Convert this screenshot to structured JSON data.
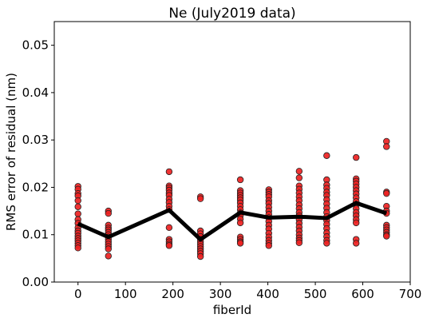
{
  "chart_data": {
    "type": "scatter",
    "title": "Ne (July2019 data)",
    "xlabel": "fiberId",
    "ylabel": "RMS error of residual (nm)",
    "xlim": [
      -50,
      700
    ],
    "ylim": [
      0.0,
      0.055
    ],
    "xticks": [
      0,
      100,
      200,
      300,
      400,
      500,
      600,
      700
    ],
    "xtick_labels": [
      "0",
      "100",
      "200",
      "300",
      "400",
      "500",
      "600",
      "700"
    ],
    "yticks": [
      0.0,
      0.01,
      0.02,
      0.03,
      0.04,
      0.05
    ],
    "ytick_labels": [
      "0.00",
      "0.01",
      "0.02",
      "0.03",
      "0.04",
      "0.05"
    ],
    "grid": false,
    "colors": {
      "points": "#ee2222",
      "point_edge": "#222222",
      "line": "#000000"
    },
    "series": [
      {
        "kind": "points",
        "points": [
          [
            0,
            0.0202
          ],
          [
            0,
            0.0196
          ],
          [
            0,
            0.0187
          ],
          [
            0,
            0.0182
          ],
          [
            0,
            0.0172
          ],
          [
            0,
            0.0159
          ],
          [
            0,
            0.0144
          ],
          [
            0,
            0.0132
          ],
          [
            0,
            0.0124
          ],
          [
            0,
            0.0115
          ],
          [
            0,
            0.0108
          ],
          [
            0,
            0.0103
          ],
          [
            0,
            0.0097
          ],
          [
            0,
            0.0092
          ],
          [
            0,
            0.0087
          ],
          [
            0,
            0.0082
          ],
          [
            0,
            0.0077
          ],
          [
            0,
            0.0072
          ],
          [
            64,
            0.015
          ],
          [
            64,
            0.0145
          ],
          [
            64,
            0.012
          ],
          [
            64,
            0.0114
          ],
          [
            64,
            0.011
          ],
          [
            64,
            0.0105
          ],
          [
            64,
            0.01
          ],
          [
            64,
            0.0095
          ],
          [
            64,
            0.009
          ],
          [
            64,
            0.0085
          ],
          [
            64,
            0.008
          ],
          [
            64,
            0.0075
          ],
          [
            64,
            0.007
          ],
          [
            64,
            0.0055
          ],
          [
            192,
            0.0233
          ],
          [
            192,
            0.0203
          ],
          [
            192,
            0.0199
          ],
          [
            192,
            0.0194
          ],
          [
            192,
            0.0188
          ],
          [
            192,
            0.0183
          ],
          [
            192,
            0.0175
          ],
          [
            192,
            0.0168
          ],
          [
            192,
            0.016
          ],
          [
            192,
            0.0153
          ],
          [
            192,
            0.0115
          ],
          [
            192,
            0.009
          ],
          [
            192,
            0.0085
          ],
          [
            192,
            0.008
          ],
          [
            192,
            0.0077
          ],
          [
            258,
            0.018
          ],
          [
            258,
            0.0176
          ],
          [
            258,
            0.0108
          ],
          [
            258,
            0.0102
          ],
          [
            258,
            0.0096
          ],
          [
            258,
            0.009
          ],
          [
            258,
            0.0085
          ],
          [
            258,
            0.008
          ],
          [
            258,
            0.0075
          ],
          [
            258,
            0.007
          ],
          [
            258,
            0.0065
          ],
          [
            258,
            0.006
          ],
          [
            258,
            0.0054
          ],
          [
            342,
            0.0216
          ],
          [
            342,
            0.0193
          ],
          [
            342,
            0.0188
          ],
          [
            342,
            0.0183
          ],
          [
            342,
            0.0178
          ],
          [
            342,
            0.0173
          ],
          [
            342,
            0.0167
          ],
          [
            342,
            0.016
          ],
          [
            342,
            0.0153
          ],
          [
            342,
            0.0146
          ],
          [
            342,
            0.014
          ],
          [
            342,
            0.0133
          ],
          [
            342,
            0.0125
          ],
          [
            342,
            0.0095
          ],
          [
            342,
            0.009
          ],
          [
            342,
            0.0085
          ],
          [
            342,
            0.0082
          ],
          [
            402,
            0.0195
          ],
          [
            402,
            0.019
          ],
          [
            402,
            0.0185
          ],
          [
            402,
            0.018
          ],
          [
            402,
            0.0172
          ],
          [
            402,
            0.0166
          ],
          [
            402,
            0.0158
          ],
          [
            402,
            0.015
          ],
          [
            402,
            0.0143
          ],
          [
            402,
            0.0136
          ],
          [
            402,
            0.0128
          ],
          [
            402,
            0.012
          ],
          [
            402,
            0.0112
          ],
          [
            402,
            0.0103
          ],
          [
            402,
            0.0095
          ],
          [
            402,
            0.0088
          ],
          [
            402,
            0.0082
          ],
          [
            402,
            0.0077
          ],
          [
            466,
            0.0234
          ],
          [
            466,
            0.022
          ],
          [
            466,
            0.0203
          ],
          [
            466,
            0.0196
          ],
          [
            466,
            0.0188
          ],
          [
            466,
            0.018
          ],
          [
            466,
            0.0172
          ],
          [
            466,
            0.0163
          ],
          [
            466,
            0.0155
          ],
          [
            466,
            0.0147
          ],
          [
            466,
            0.014
          ],
          [
            466,
            0.0132
          ],
          [
            466,
            0.0124
          ],
          [
            466,
            0.0116
          ],
          [
            466,
            0.0108
          ],
          [
            466,
            0.01
          ],
          [
            466,
            0.0093
          ],
          [
            466,
            0.0088
          ],
          [
            466,
            0.0083
          ],
          [
            524,
            0.0267
          ],
          [
            524,
            0.0216
          ],
          [
            524,
            0.0205
          ],
          [
            524,
            0.0198
          ],
          [
            524,
            0.019
          ],
          [
            524,
            0.0183
          ],
          [
            524,
            0.0174
          ],
          [
            524,
            0.0165
          ],
          [
            524,
            0.0156
          ],
          [
            524,
            0.0147
          ],
          [
            524,
            0.0138
          ],
          [
            524,
            0.013
          ],
          [
            524,
            0.0122
          ],
          [
            524,
            0.0113
          ],
          [
            524,
            0.0104
          ],
          [
            524,
            0.0096
          ],
          [
            524,
            0.0088
          ],
          [
            524,
            0.0082
          ],
          [
            586,
            0.0263
          ],
          [
            586,
            0.0218
          ],
          [
            586,
            0.0213
          ],
          [
            586,
            0.0207
          ],
          [
            586,
            0.02
          ],
          [
            586,
            0.0193
          ],
          [
            586,
            0.0186
          ],
          [
            586,
            0.0178
          ],
          [
            586,
            0.017
          ],
          [
            586,
            0.0163
          ],
          [
            586,
            0.0155
          ],
          [
            586,
            0.0147
          ],
          [
            586,
            0.014
          ],
          [
            586,
            0.0132
          ],
          [
            586,
            0.0125
          ],
          [
            586,
            0.009
          ],
          [
            586,
            0.0082
          ],
          [
            650,
            0.0297
          ],
          [
            650,
            0.0286
          ],
          [
            650,
            0.019
          ],
          [
            650,
            0.0187
          ],
          [
            650,
            0.016
          ],
          [
            650,
            0.015
          ],
          [
            650,
            0.0145
          ],
          [
            650,
            0.012
          ],
          [
            650,
            0.0115
          ],
          [
            650,
            0.011
          ],
          [
            650,
            0.0105
          ],
          [
            650,
            0.01
          ],
          [
            650,
            0.0097
          ]
        ]
      },
      {
        "kind": "line",
        "x": [
          0,
          64,
          192,
          258,
          342,
          402,
          466,
          524,
          586,
          650
        ],
        "y": [
          0.0123,
          0.0095,
          0.0152,
          0.009,
          0.0147,
          0.0136,
          0.0138,
          0.0135,
          0.0167,
          0.0145
        ]
      }
    ]
  }
}
